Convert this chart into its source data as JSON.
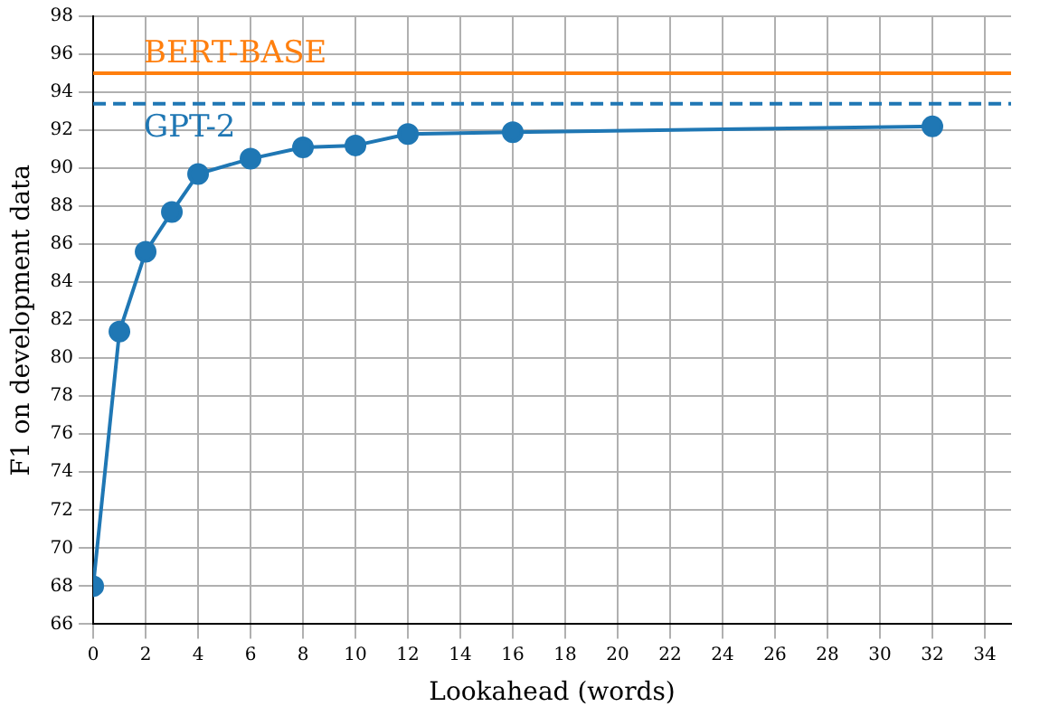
{
  "chart_data": {
    "type": "line",
    "xlabel": "Lookahead (words)",
    "ylabel": "F1 on development data",
    "x": [
      0,
      1,
      2,
      3,
      4,
      6,
      8,
      10,
      12,
      16,
      32
    ],
    "series": [
      {
        "color": "#1f77b4",
        "values": [
          68,
          81.4,
          85.6,
          87.7,
          89.7,
          90.5,
          91.1,
          91.2,
          91.8,
          91.9,
          92.2
        ]
      }
    ],
    "xlim": [
      0,
      35
    ],
    "xticks": [
      0,
      2,
      4,
      6,
      8,
      10,
      12,
      14,
      16,
      18,
      20,
      22,
      24,
      26,
      28,
      30,
      32,
      34
    ],
    "ylim": [
      66,
      98
    ],
    "yticks": [
      66,
      68,
      70,
      72,
      74,
      76,
      78,
      80,
      82,
      84,
      86,
      88,
      90,
      92,
      94,
      96,
      98
    ],
    "ref_lines": [
      {
        "axis": "y",
        "value": 95,
        "label": "BERT-BASE",
        "color": "#ff7f0e",
        "line_style": "solid"
      },
      {
        "axis": "y",
        "value": 93.4,
        "label": "GPT-2",
        "color": "#1f77b4",
        "line_style": "dashed"
      }
    ],
    "grid": true,
    "marker": "circle",
    "line_style": "solid",
    "legend": false
  }
}
